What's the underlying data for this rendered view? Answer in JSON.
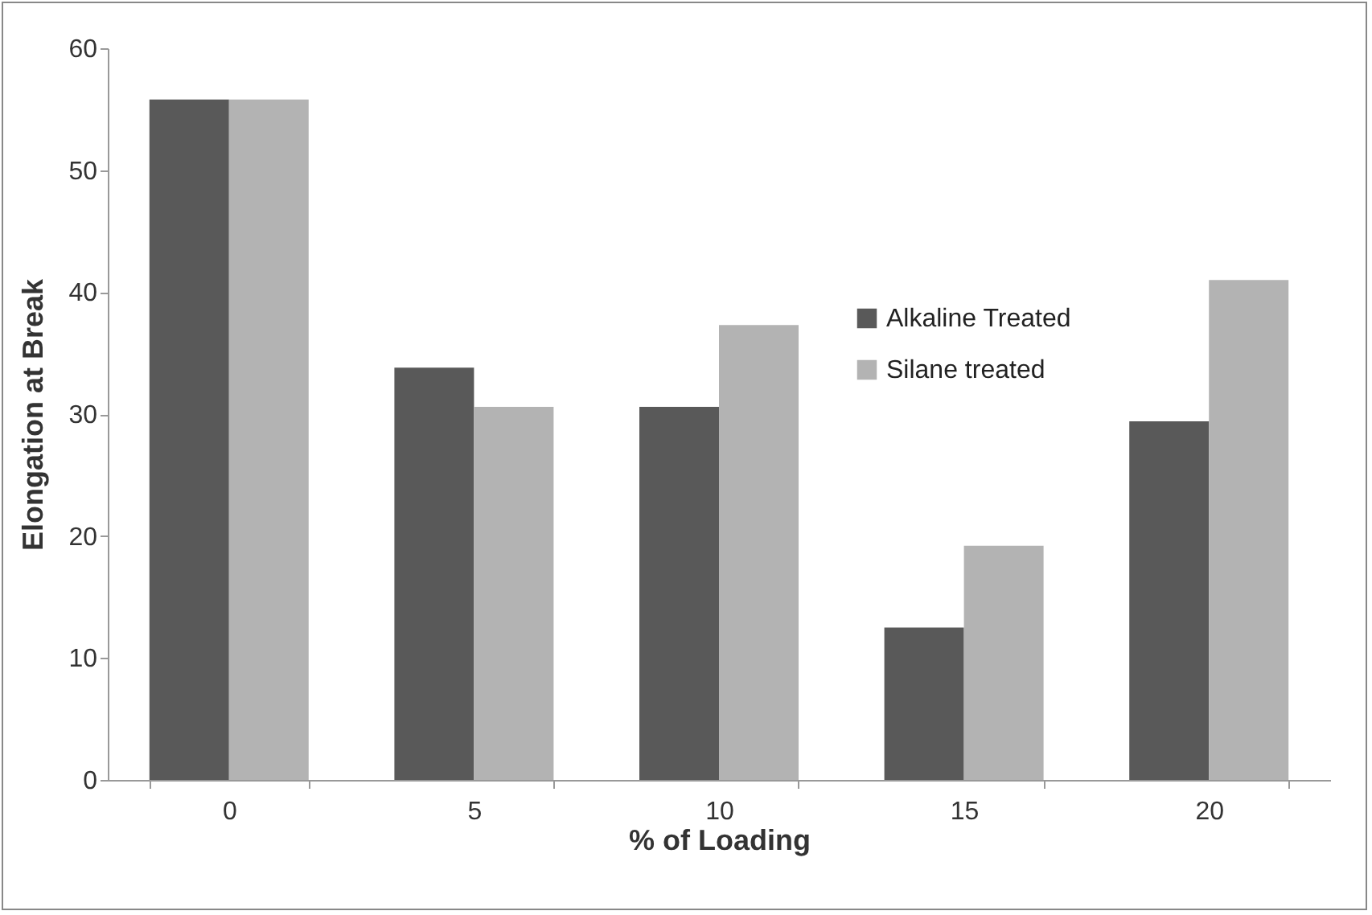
{
  "chart_data": {
    "type": "bar",
    "xlabel": "% of Loading",
    "ylabel": "Elongation at Break",
    "categories": [
      "0",
      "5",
      "10",
      "15",
      "20"
    ],
    "series": [
      {
        "name": "Alkaline Treated",
        "color": "#595959",
        "values": [
          55.8,
          33.8,
          30.6,
          12.5,
          29.4
        ]
      },
      {
        "name": "Silane treated",
        "color": "#b3b3b3",
        "values": [
          55.8,
          30.6,
          37.3,
          19.2,
          41.0
        ]
      }
    ],
    "ylim": [
      0,
      60
    ],
    "yticks": [
      0,
      10,
      20,
      30,
      40,
      50,
      60
    ],
    "grid": false,
    "legend": "top right"
  }
}
